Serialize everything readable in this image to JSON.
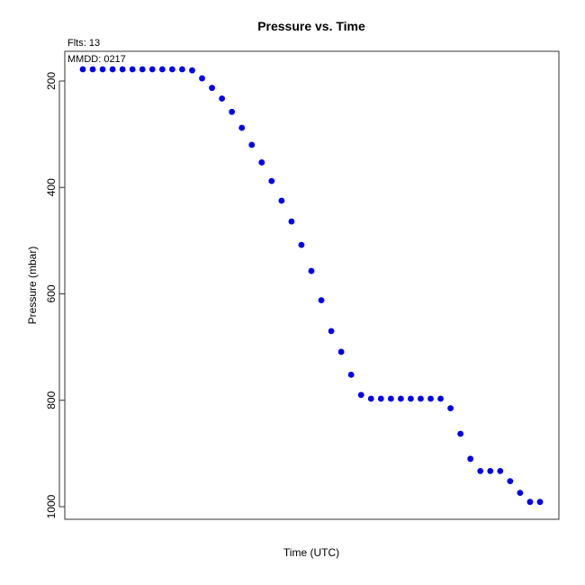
{
  "chart_data": {
    "type": "scatter",
    "title": "Pressure  vs. Time",
    "subtitle": "Flts: 13",
    "annotation": "MMDD: 0217",
    "xlabel": "Time (UTC)",
    "ylabel": "Pressure (mbar)",
    "ylim": [
      1020,
      160
    ],
    "y_reversed": true,
    "yticks": [
      200,
      400,
      600,
      800,
      1000
    ],
    "x_ticks_shown": false,
    "marker_color": "#0000ee",
    "series": [
      {
        "x": [
          1,
          2,
          3,
          4,
          5,
          6,
          7,
          8,
          9,
          10,
          11,
          12,
          13,
          14,
          15,
          16,
          17,
          18,
          19,
          20,
          21,
          22,
          23,
          24,
          25,
          26,
          27,
          28,
          29,
          30,
          31,
          32,
          33,
          34,
          35,
          36,
          37,
          38,
          39,
          40,
          41,
          42,
          43,
          44,
          45,
          46,
          47
        ],
        "values": [
          178,
          178,
          178,
          178,
          178,
          178,
          178,
          178,
          178,
          178,
          178,
          180,
          195,
          213,
          233,
          258,
          288,
          320,
          353,
          388,
          425,
          464,
          508,
          557,
          612,
          670,
          709,
          752,
          790,
          797,
          797,
          797,
          797,
          797,
          797,
          797,
          797,
          815,
          863,
          910,
          933,
          933,
          933,
          952,
          974,
          991,
          991
        ]
      }
    ]
  }
}
